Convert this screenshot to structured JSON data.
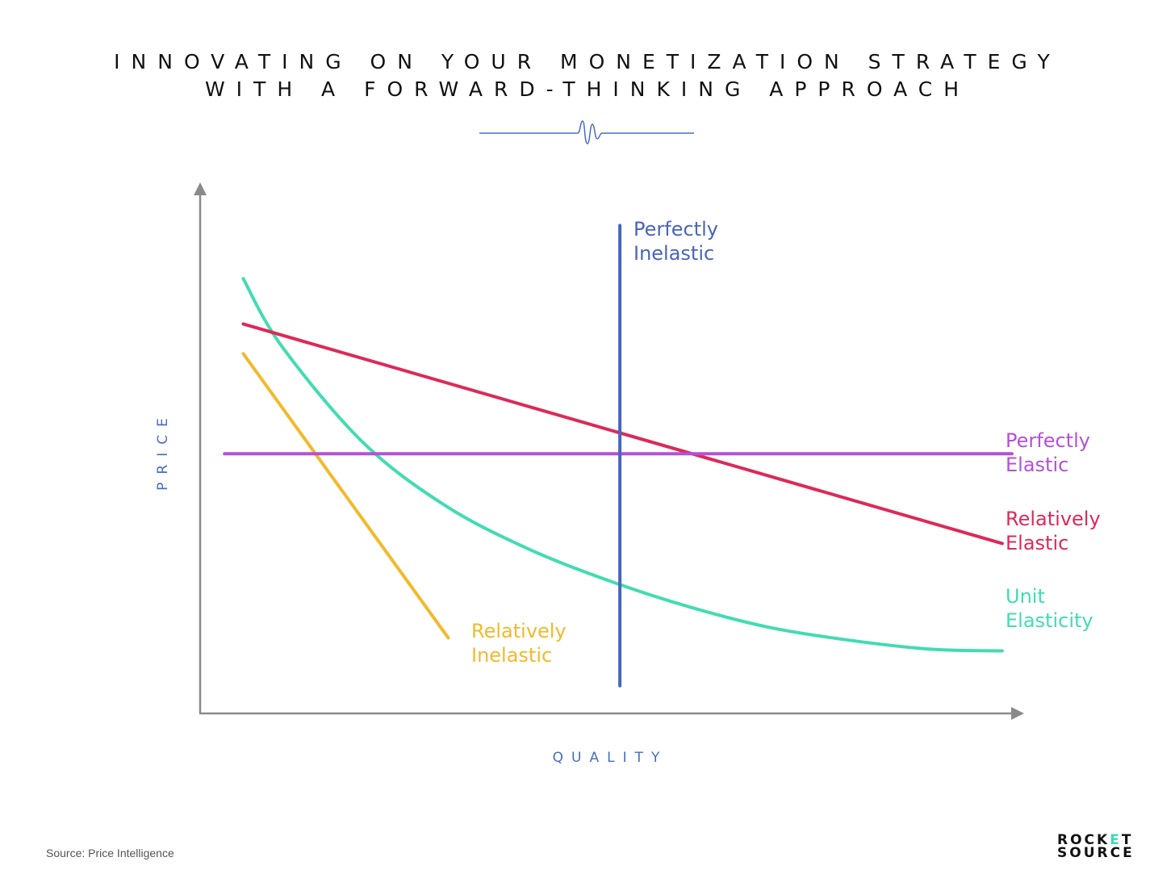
{
  "title": {
    "line1": "INNOVATING ON YOUR MONETIZATION STRATEGY",
    "line2": "WITH A FORWARD-THINKING APPROACH"
  },
  "source": "Source: Price Intelligence",
  "logo": {
    "line1_pre": "ROCK",
    "line1_accent": "E",
    "line1_post": "T",
    "line2": "SOURCE"
  },
  "colors": {
    "accent_blue": "#4a6bc4",
    "axis": "#8a8a8a",
    "perfectly_inelastic": "#4a64bb",
    "perfectly_elastic": "#b450d8",
    "relatively_elastic": "#dc2a58",
    "unit_elasticity": "#43dbb3",
    "relatively_inelastic": "#f2b92b",
    "logo_accent": "#3fd9b3"
  },
  "chart_data": {
    "type": "line",
    "xlabel": "QUALITY",
    "ylabel": "PRICE",
    "xlim": [
      0,
      100
    ],
    "ylim": [
      0,
      100
    ],
    "grid": false,
    "legend": "none",
    "series": [
      {
        "key": "relatively_inelastic",
        "name_lines": [
          "Relatively",
          "Inelastic"
        ],
        "color": "#f2b92b",
        "x": [
          5.3,
          30.5
        ],
        "y": [
          69,
          14.5
        ]
      },
      {
        "key": "unit_elasticity",
        "name_lines": [
          "Unit",
          "Elasticity"
        ],
        "color": "#43dbb3",
        "x": [
          5.3,
          10,
          20,
          30,
          40,
          50,
          60,
          70,
          80,
          90,
          98.6
        ],
        "y": [
          83.4,
          70.5,
          52,
          40,
          31.8,
          25.6,
          20.5,
          16.5,
          14,
          12.3,
          12
        ]
      },
      {
        "key": "relatively_elastic",
        "name_lines": [
          "Relatively",
          "Elastic"
        ],
        "color": "#dc2a58",
        "x": [
          5.3,
          98.6
        ],
        "y": [
          74.7,
          32.6
        ]
      },
      {
        "key": "perfectly_elastic",
        "name_lines": [
          "Perfectly",
          "Elastic"
        ],
        "color": "#b450d8",
        "x": [
          3,
          99.8
        ],
        "y": [
          49.8,
          49.8
        ]
      },
      {
        "key": "perfectly_inelastic",
        "name_lines": [
          "Perfectly",
          "Inelastic"
        ],
        "color": "#4a64bb",
        "x": [
          51.6,
          51.6
        ],
        "y": [
          5.3,
          93.6
        ]
      }
    ]
  }
}
